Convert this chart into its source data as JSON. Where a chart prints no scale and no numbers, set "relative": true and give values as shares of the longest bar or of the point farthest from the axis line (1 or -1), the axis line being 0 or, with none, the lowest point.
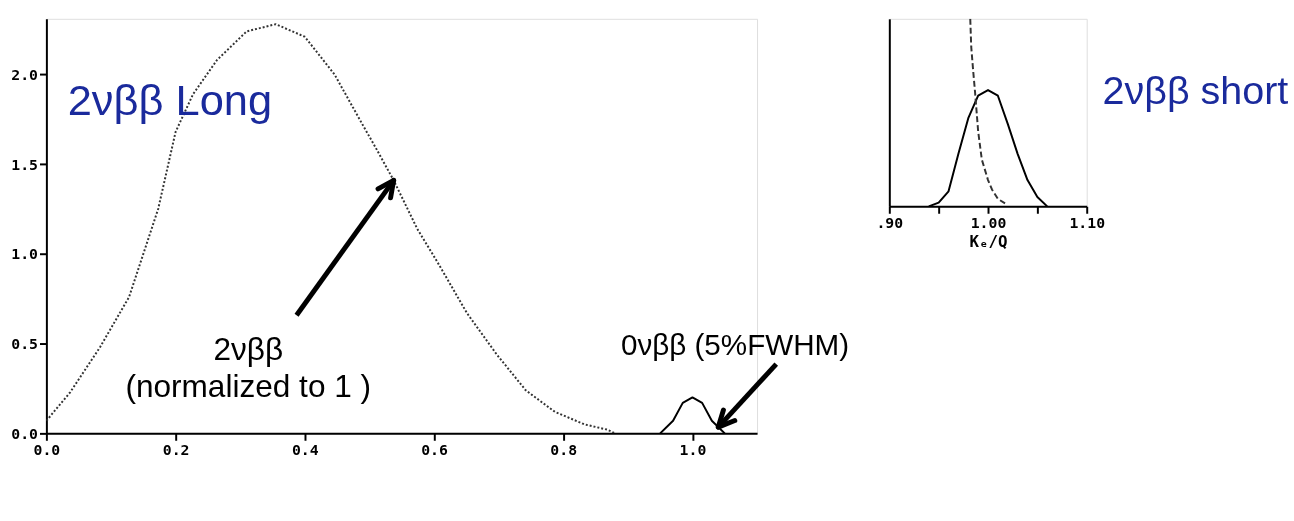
{
  "chart_data": [
    {
      "type": "line",
      "xlim": [
        0,
        1.1
      ],
      "ylim": [
        0,
        2.31
      ],
      "xticks": [
        {
          "value": 0,
          "label": "0.0"
        },
        {
          "value": 0.2,
          "label": "0.2"
        },
        {
          "value": 0.4,
          "label": "0.4"
        },
        {
          "value": 0.6,
          "label": "0.6"
        },
        {
          "value": 0.8,
          "label": "0.8"
        },
        {
          "value": 1.0,
          "label": "1.0"
        }
      ],
      "yticks": [
        {
          "value": 0,
          "label": "0.0"
        },
        {
          "value": 0.5,
          "label": "0.5"
        },
        {
          "value": 1.0,
          "label": "1.0"
        },
        {
          "value": 1.5,
          "label": "1.5"
        },
        {
          "value": 2.0,
          "label": "2.0"
        }
      ],
      "series": [
        {
          "color": "#333333",
          "line_style": "dotted",
          "x": [
            0,
            0.037,
            0.083,
            0.128,
            0.173,
            0.2,
            0.227,
            0.264,
            0.31,
            0.355,
            0.4,
            0.446,
            0.491,
            0.51,
            0.5375,
            0.574,
            0.606,
            0.651,
            0.697,
            0.742,
            0.787,
            0.833,
            0.869,
            0.88
          ],
          "values": [
            0.07,
            0.23,
            0.48,
            0.76,
            1.25,
            1.68,
            1.89,
            2.08,
            2.24,
            2.28,
            2.21,
            2.0,
            1.71,
            1.59,
            1.41,
            1.14,
            0.95,
            0.67,
            0.44,
            0.24,
            0.12,
            0.05,
            0.02,
            0
          ]
        },
        {
          "color": "#000000",
          "line_style": "solid",
          "x": [
            0.95,
            0.97,
            0.985,
            1.0,
            1.015,
            1.03,
            1.05
          ],
          "values": [
            0,
            0.07,
            0.17,
            0.2,
            0.17,
            0.07,
            0
          ]
        }
      ],
      "annotations": [
        "2νββ Long",
        {
          "text": "2νββ\n(normalized to 1 )",
          "x": 0.5375,
          "y": 1.41
        },
        {
          "text": "0νββ (5%FWHM)",
          "x": 1.04,
          "y": 0.035
        }
      ]
    },
    {
      "type": "line",
      "relative": true,
      "tick_labels": "x",
      "xlim": [
        0.9,
        1.1
      ],
      "xticks": [
        {
          "value": 0.9,
          "label": ".90"
        },
        {
          "value": 0.95,
          "label": null
        },
        {
          "value": 1.0,
          "label": "1.00"
        },
        {
          "value": 1.05,
          "label": null
        },
        {
          "value": 1.1,
          "label": "1.10"
        }
      ],
      "xlabel": "Kₑ/Q",
      "series": [
        {
          "color": "#000000",
          "line_style": "solid",
          "x": [
            0.94,
            0.95,
            0.96,
            0.97,
            0.98,
            0.99,
            1.0,
            1.01,
            1.02,
            1.03,
            1.04,
            1.05,
            1.06
          ],
          "values": [
            0,
            0.02,
            0.08,
            0.28,
            0.47,
            0.59,
            0.62,
            0.59,
            0.44,
            0.28,
            0.14,
            0.05,
            0
          ]
        },
        {
          "color": "#333333",
          "line_style": "dashed",
          "x": [
            0.982,
            0.983,
            0.985,
            0.987,
            0.99,
            0.9937,
            1.0,
            1.004,
            1.01,
            1.019
          ],
          "values": [
            1,
            0.85,
            0.72,
            0.6,
            0.4,
            0.25,
            0.14,
            0.09,
            0.04,
            0.01
          ]
        }
      ],
      "annotations": [
        "2νββ short"
      ]
    }
  ]
}
